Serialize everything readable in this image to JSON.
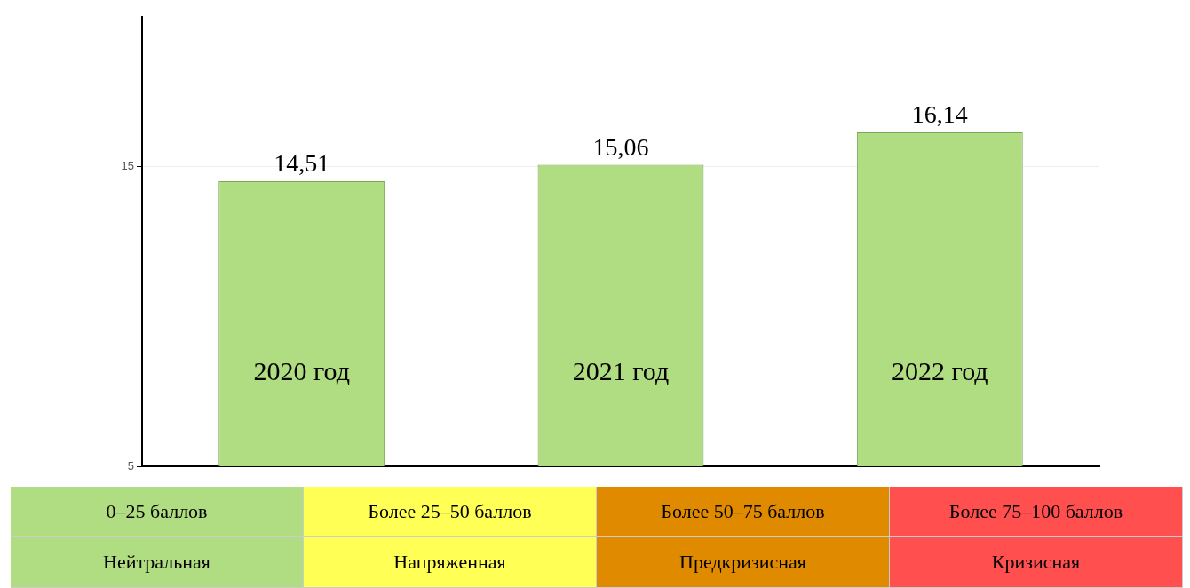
{
  "chart_data": {
    "type": "bar",
    "categories": [
      "2020 год",
      "2021 год",
      "2022 год"
    ],
    "values": [
      14.51,
      15.06,
      16.14
    ],
    "color": "#b0dc82",
    "value_labels": [
      "14,51",
      "15,06",
      "16,14"
    ],
    "ylim": [
      5,
      20
    ],
    "yticks": [
      5,
      15
    ],
    "grid": "y",
    "legend": false,
    "annotations": [
      "0–25 баллов",
      "Более 25–50 баллов",
      "Более 50–75 баллов",
      "Более 75–100 баллов",
      "Нейтральная",
      "Напряженная",
      "Предкризисная",
      "Кризисная"
    ]
  }
}
